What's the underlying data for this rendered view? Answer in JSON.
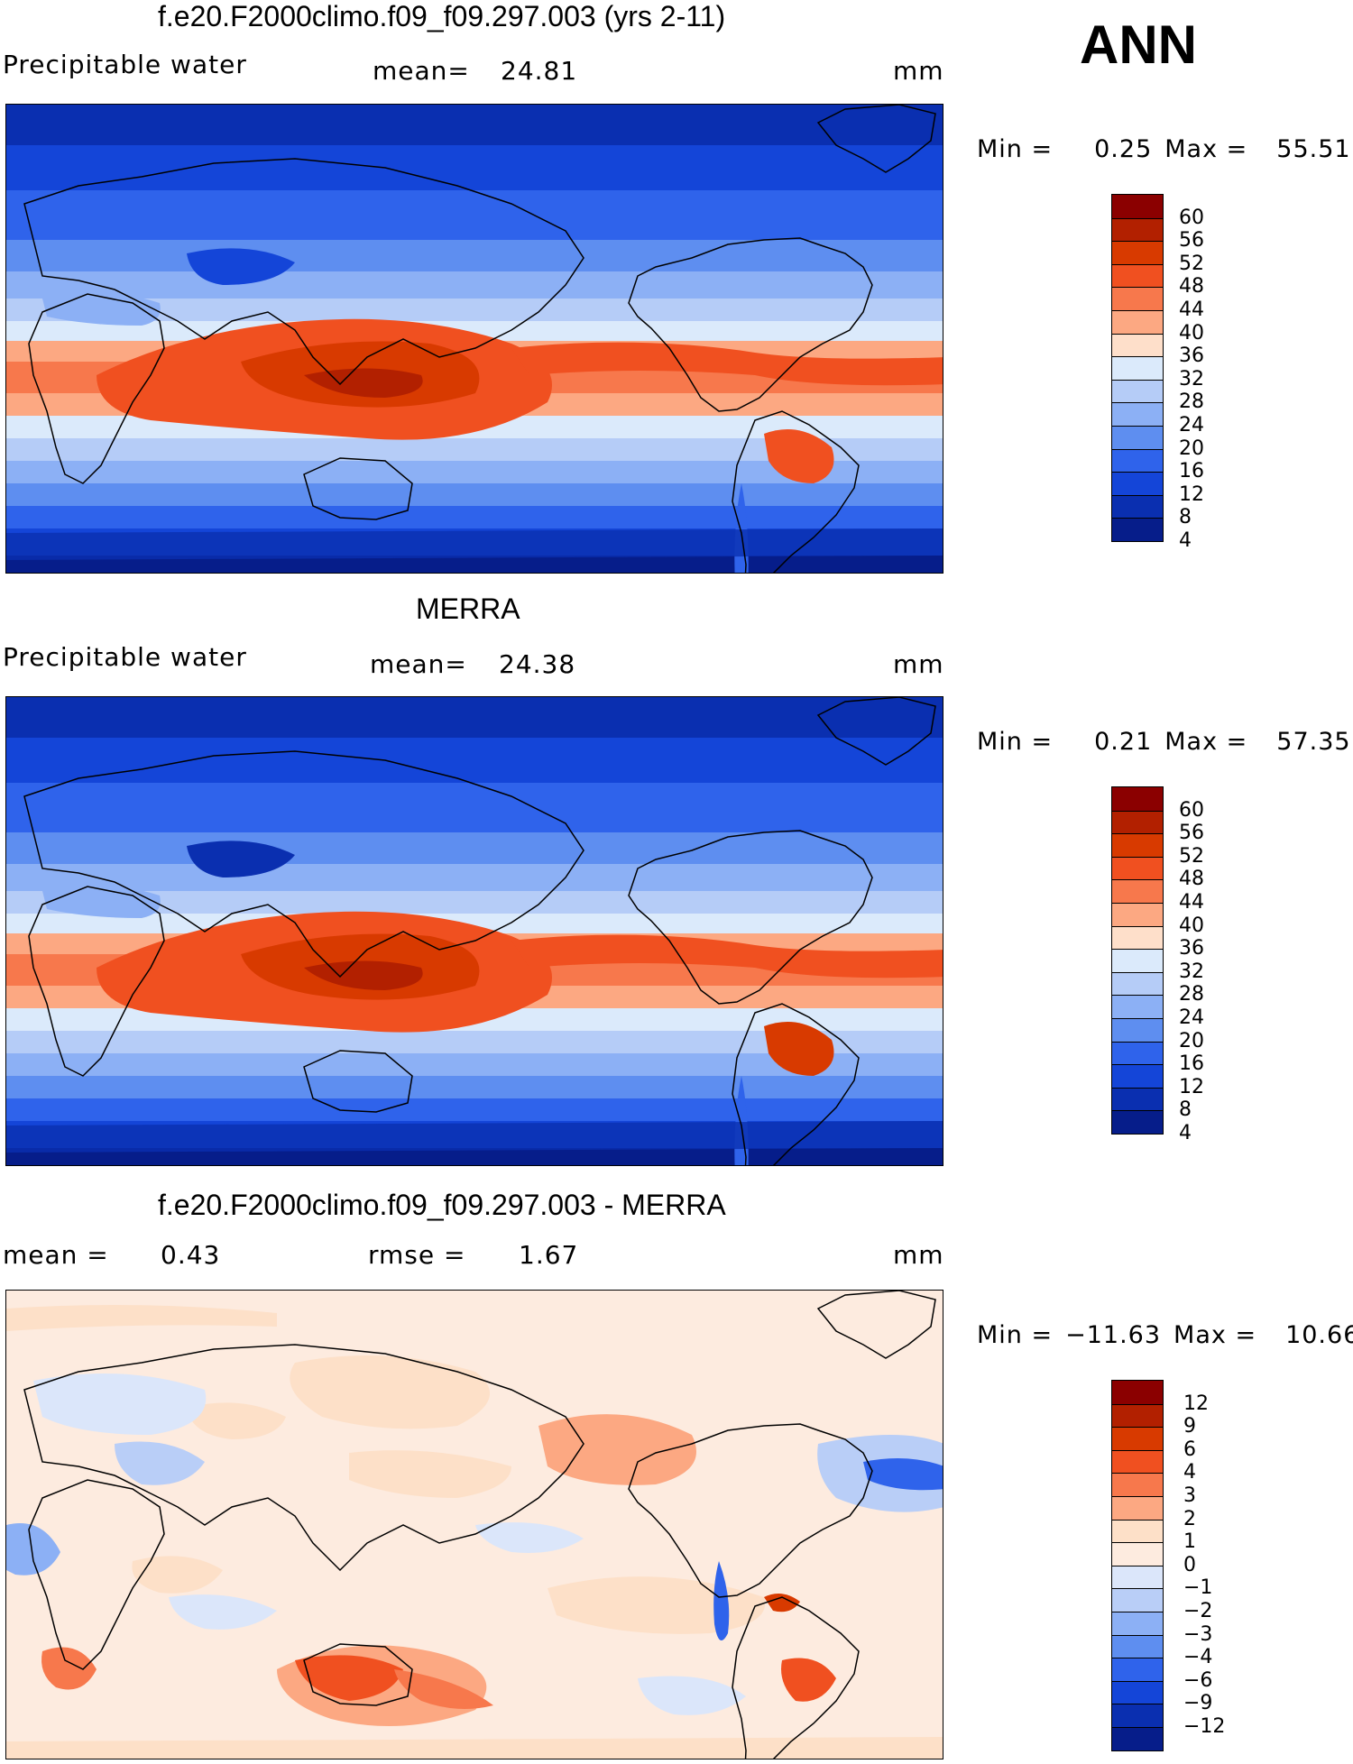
{
  "season": "ANN",
  "panels": [
    {
      "title": "f.e20.F2000climo.f09_f09.297.003 (yrs 2-11)",
      "left_label": "Precipitable  water",
      "mid_label": "mean=",
      "mid_value": "24.81",
      "right_label": "mm",
      "min_label": "Min  =",
      "min_value": "0.25",
      "max_label": "Max  =",
      "max_value": "55.51",
      "colorbar_labels": [
        "60",
        "56",
        "52",
        "48",
        "44",
        "40",
        "36",
        "32",
        "28",
        "24",
        "20",
        "16",
        "12",
        "8",
        "4"
      ],
      "colors": [
        "#8b0000",
        "#b22000",
        "#d83a00",
        "#f05020",
        "#f7784c",
        "#fca882",
        "#fedfca",
        "#dbeafb",
        "#b5ccf7",
        "#8cb0f5",
        "#5e8ef0",
        "#2f63eb",
        "#1445d8",
        "#0a2fb0",
        "#061d8a"
      ]
    },
    {
      "title": "MERRA",
      "left_label": "Precipitable  water",
      "mid_label": "mean=",
      "mid_value": "24.38",
      "right_label": "mm",
      "min_label": "Min  =",
      "min_value": "0.21",
      "max_label": "Max  =",
      "max_value": "57.35",
      "colorbar_labels": [
        "60",
        "56",
        "52",
        "48",
        "44",
        "40",
        "36",
        "32",
        "28",
        "24",
        "20",
        "16",
        "12",
        "8",
        "4"
      ],
      "colors": [
        "#8b0000",
        "#b22000",
        "#d83a00",
        "#f05020",
        "#f7784c",
        "#fca882",
        "#fedfca",
        "#dbeafb",
        "#b5ccf7",
        "#8cb0f5",
        "#5e8ef0",
        "#2f63eb",
        "#1445d8",
        "#0a2fb0",
        "#061d8a"
      ]
    },
    {
      "title": "f.e20.F2000climo.f09_f09.297.003 - MERRA",
      "left_label": "mean  =",
      "left_value": "0.43",
      "mid_label": "rmse  =",
      "mid_value": "1.67",
      "right_label": "mm",
      "min_label": "Min  =",
      "min_value": "−11.63",
      "max_label": "Max  =",
      "max_value": "10.66",
      "colorbar_labels": [
        "12",
        "9",
        "6",
        "4",
        "3",
        "2",
        "1",
        "0",
        "−1",
        "−2",
        "−3",
        "−4",
        "−6",
        "−9",
        "−12"
      ],
      "colors": [
        "#8b0000",
        "#b22000",
        "#d83a00",
        "#f05020",
        "#f7784c",
        "#fca882",
        "#fde0c8",
        "#fdebdf",
        "#dbe6fa",
        "#b9cef7",
        "#8cb0f5",
        "#5e8ef0",
        "#2f63eb",
        "#1445d8",
        "#0a2fb0",
        "#061d8a"
      ]
    }
  ]
}
